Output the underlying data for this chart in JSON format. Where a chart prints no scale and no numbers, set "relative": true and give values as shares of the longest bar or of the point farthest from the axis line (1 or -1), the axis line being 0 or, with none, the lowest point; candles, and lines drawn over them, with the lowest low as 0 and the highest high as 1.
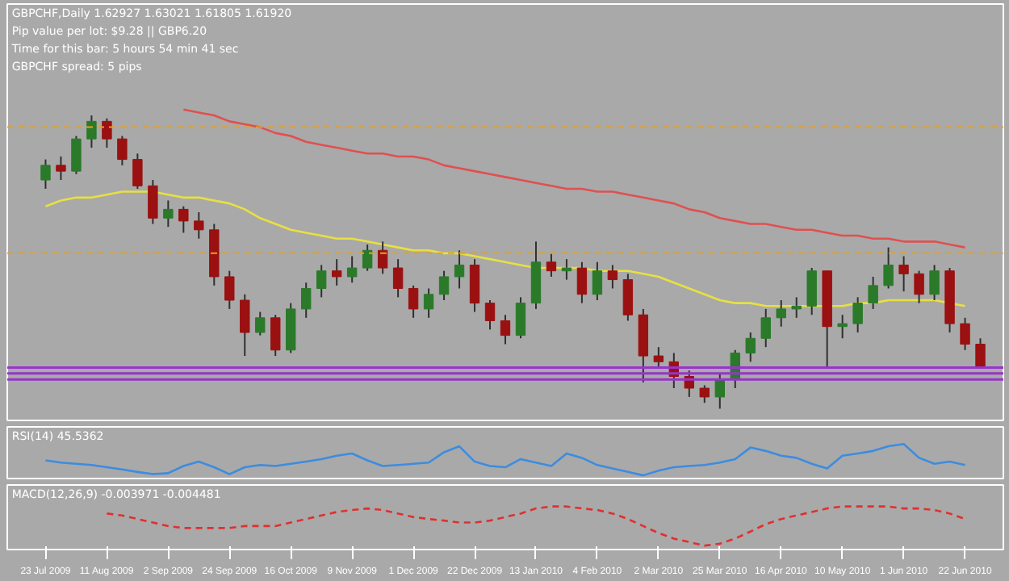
{
  "chart_data": [
    {
      "type": "candlestick",
      "relative": true,
      "title": "GBPCHF,Daily 1.62927 1.63021 1.61805 1.61920",
      "tick_labels": false,
      "grid": false,
      "annotations": [
        "Pip value per lot: $9.28 || GBP6.20",
        "Time for this bar: 5 hours 54 min 41 sec",
        "GBPCHF spread: 5 pips"
      ],
      "ohlc": [
        [
          0.78,
          0.85,
          0.75,
          0.83
        ],
        [
          0.83,
          0.86,
          0.78,
          0.81
        ],
        [
          0.81,
          0.93,
          0.8,
          0.92
        ],
        [
          0.92,
          1,
          0.89,
          0.98
        ],
        [
          0.98,
          0.99,
          0.89,
          0.92
        ],
        [
          0.92,
          0.93,
          0.83,
          0.85
        ],
        [
          0.85,
          0.87,
          0.75,
          0.76
        ],
        [
          0.76,
          0.78,
          0.63,
          0.65
        ],
        [
          0.65,
          0.71,
          0.62,
          0.68
        ],
        [
          0.68,
          0.69,
          0.6,
          0.64
        ],
        [
          0.64,
          0.67,
          0.58,
          0.61
        ],
        [
          0.61,
          0.63,
          0.42,
          0.45
        ],
        [
          0.45,
          0.47,
          0.34,
          0.37
        ],
        [
          0.37,
          0.39,
          0.18,
          0.26
        ],
        [
          0.26,
          0.33,
          0.25,
          0.31
        ],
        [
          0.31,
          0.32,
          0.18,
          0.2
        ],
        [
          0.2,
          0.36,
          0.19,
          0.34
        ],
        [
          0.34,
          0.43,
          0.31,
          0.41
        ],
        [
          0.41,
          0.49,
          0.38,
          0.47
        ],
        [
          0.47,
          0.51,
          0.42,
          0.45
        ],
        [
          0.45,
          0.52,
          0.43,
          0.48
        ],
        [
          0.48,
          0.56,
          0.47,
          0.54
        ],
        [
          0.54,
          0.57,
          0.46,
          0.48
        ],
        [
          0.48,
          0.51,
          0.38,
          0.41
        ],
        [
          0.41,
          0.42,
          0.31,
          0.34
        ],
        [
          0.34,
          0.41,
          0.31,
          0.39
        ],
        [
          0.39,
          0.47,
          0.37,
          0.45
        ],
        [
          0.45,
          0.54,
          0.41,
          0.49
        ],
        [
          0.49,
          0.51,
          0.33,
          0.36
        ],
        [
          0.36,
          0.37,
          0.27,
          0.3
        ],
        [
          0.3,
          0.32,
          0.22,
          0.25
        ],
        [
          0.25,
          0.38,
          0.24,
          0.36
        ],
        [
          0.36,
          0.57,
          0.34,
          0.5
        ],
        [
          0.5,
          0.53,
          0.45,
          0.47
        ],
        [
          0.47,
          0.51,
          0.44,
          0.48
        ],
        [
          0.48,
          0.5,
          0.36,
          0.39
        ],
        [
          0.39,
          0.5,
          0.37,
          0.47
        ],
        [
          0.47,
          0.49,
          0.41,
          0.44
        ],
        [
          0.44,
          0.46,
          0.3,
          0.32
        ],
        [
          0.32,
          0.34,
          0.09,
          0.18
        ],
        [
          0.18,
          0.21,
          0.14,
          0.16
        ],
        [
          0.16,
          0.19,
          0.07,
          0.11
        ],
        [
          0.11,
          0.13,
          0.04,
          0.07
        ],
        [
          0.07,
          0.08,
          0.02,
          0.04
        ],
        [
          0.04,
          0.12,
          0,
          0.1
        ],
        [
          0.1,
          0.2,
          0.07,
          0.19
        ],
        [
          0.19,
          0.26,
          0.16,
          0.24
        ],
        [
          0.24,
          0.34,
          0.21,
          0.31
        ],
        [
          0.31,
          0.37,
          0.28,
          0.34
        ],
        [
          0.34,
          0.38,
          0.31,
          0.35
        ],
        [
          0.35,
          0.48,
          0.32,
          0.47
        ],
        [
          0.47,
          0.47,
          0.14,
          0.28
        ],
        [
          0.28,
          0.32,
          0.24,
          0.29
        ],
        [
          0.29,
          0.38,
          0.26,
          0.36
        ],
        [
          0.36,
          0.45,
          0.34,
          0.42
        ],
        [
          0.42,
          0.55,
          0.41,
          0.49
        ],
        [
          0.49,
          0.52,
          0.4,
          0.46
        ],
        [
          0.46,
          0.47,
          0.36,
          0.39
        ],
        [
          0.39,
          0.49,
          0.37,
          0.47
        ],
        [
          0.47,
          0.48,
          0.26,
          0.29
        ],
        [
          0.29,
          0.31,
          0.2,
          0.22
        ],
        [
          0.22,
          0.24,
          0.14,
          0.14
        ]
      ],
      "colors": [
        "#2a7a2a",
        "#9b1010",
        "#2a7a2a",
        "#2a7a2a",
        "#9b1010",
        "#9b1010",
        "#9b1010",
        "#9b1010",
        "#2a7a2a",
        "#9b1010",
        "#9b1010",
        "#9b1010",
        "#9b1010",
        "#9b1010",
        "#2a7a2a",
        "#9b1010",
        "#2a7a2a",
        "#2a7a2a",
        "#2a7a2a",
        "#9b1010",
        "#2a7a2a",
        "#2a7a2a",
        "#9b1010",
        "#9b1010",
        "#9b1010",
        "#2a7a2a",
        "#2a7a2a",
        "#2a7a2a",
        "#9b1010",
        "#9b1010",
        "#9b1010",
        "#2a7a2a",
        "#2a7a2a",
        "#9b1010",
        "#2a7a2a",
        "#9b1010",
        "#2a7a2a",
        "#9b1010",
        "#9b1010",
        "#9b1010",
        "#9b1010",
        "#9b1010",
        "#9b1010",
        "#9b1010",
        "#2a7a2a",
        "#2a7a2a",
        "#2a7a2a",
        "#2a7a2a",
        "#2a7a2a",
        "#2a7a2a",
        "#2a7a2a",
        "#9b1010",
        "#2a7a2a",
        "#2a7a2a",
        "#2a7a2a",
        "#2a7a2a",
        "#9b1010",
        "#9b1010",
        "#2a7a2a",
        "#9b1010",
        "#9b1010",
        "#9b1010"
      ],
      "series": [
        {
          "type": "line",
          "color": "#e05050",
          "values": [
            null,
            null,
            null,
            null,
            null,
            null,
            null,
            null,
            null,
            1.02,
            1.01,
            1.0,
            0.98,
            0.97,
            0.96,
            0.94,
            0.93,
            0.91,
            0.9,
            0.89,
            0.88,
            0.87,
            0.87,
            0.86,
            0.86,
            0.85,
            0.83,
            0.82,
            0.81,
            0.8,
            0.79,
            0.78,
            0.77,
            0.76,
            0.75,
            0.75,
            0.74,
            0.74,
            0.73,
            0.72,
            0.71,
            0.7,
            0.68,
            0.67,
            0.65,
            0.64,
            0.63,
            0.63,
            0.62,
            0.61,
            0.61,
            0.6,
            0.59,
            0.59,
            0.58,
            0.58,
            0.57,
            0.57,
            0.57,
            0.56,
            0.55,
            null
          ]
        },
        {
          "type": "line",
          "color": "#e8e040",
          "values": [
            0.69,
            0.71,
            0.72,
            0.72,
            0.73,
            0.74,
            0.74,
            0.74,
            0.73,
            0.72,
            0.72,
            0.71,
            0.7,
            0.68,
            0.65,
            0.63,
            0.61,
            0.6,
            0.59,
            0.58,
            0.58,
            0.57,
            0.56,
            0.55,
            0.54,
            0.54,
            0.53,
            0.53,
            0.52,
            0.51,
            0.5,
            0.49,
            0.48,
            0.48,
            0.48,
            0.48,
            0.47,
            0.47,
            0.47,
            0.46,
            0.45,
            0.43,
            0.41,
            0.39,
            0.37,
            0.36,
            0.36,
            0.35,
            0.35,
            0.35,
            0.35,
            0.35,
            0.35,
            0.36,
            0.36,
            0.37,
            0.37,
            0.37,
            0.37,
            0.36,
            0.35,
            null
          ]
        }
      ],
      "ref_lines": [
        {
          "axis": "y",
          "value": 0.96,
          "color": "#e8a020",
          "line_style": "dashed"
        },
        {
          "axis": "y",
          "value": 0.53,
          "color": "#e8a020",
          "line_style": "dashed"
        },
        {
          "axis": "y",
          "value": 0.14,
          "color": "#9933cc",
          "line_style": "solid"
        },
        {
          "axis": "y",
          "value": 0.12,
          "color": "#9933cc",
          "line_style": "solid"
        },
        {
          "axis": "y",
          "value": 0.1,
          "color": "#9933cc",
          "line_style": "solid"
        }
      ]
    },
    {
      "type": "line",
      "relative": true,
      "title": "RSI(14) 45.5362",
      "tick_labels": false,
      "grid": false,
      "line_style": "solid",
      "series": [
        {
          "color": "#3c8ce0",
          "values": [
            0.48,
            0.41,
            0.37,
            0.33,
            0.26,
            0.19,
            0.11,
            0.04,
            0.07,
            0.3,
            0.44,
            0.26,
            0.04,
            0.26,
            0.33,
            0.3,
            0.37,
            0.44,
            0.52,
            0.63,
            0.7,
            0.48,
            0.3,
            0.33,
            0.37,
            0.41,
            0.74,
            0.93,
            0.44,
            0.3,
            0.26,
            0.52,
            0.41,
            0.3,
            0.7,
            0.56,
            0.33,
            0.22,
            0.11,
            0,
            0.15,
            0.26,
            0.3,
            0.33,
            0.41,
            0.52,
            0.89,
            0.78,
            0.63,
            0.56,
            0.37,
            0.22,
            0.63,
            0.7,
            0.78,
            0.93,
            1.0,
            0.56,
            0.37,
            0.44,
            0.33,
            null
          ]
        }
      ]
    },
    {
      "type": "line",
      "relative": true,
      "title": "MACD(12,26,9) -0.003971 -0.004481",
      "tick_labels": "x",
      "grid": false,
      "line_style": "dashed",
      "categories": [
        "23 Jul 2009",
        null,
        null,
        null,
        "11 Aug 2009",
        null,
        null,
        null,
        "2 Sep 2009",
        null,
        null,
        null,
        "24 Sep 2009",
        null,
        null,
        null,
        "16 Oct 2009",
        null,
        null,
        null,
        "9 Nov 2009",
        null,
        null,
        null,
        "1 Dec 2009",
        null,
        null,
        null,
        "22 Dec 2009",
        null,
        null,
        null,
        "13 Jan 2010",
        null,
        null,
        null,
        "4 Feb 2010",
        null,
        null,
        null,
        "2 Mar 2010",
        null,
        null,
        null,
        "25 Mar 2010",
        null,
        null,
        null,
        "16 Apr 2010",
        null,
        null,
        null,
        "10 May 2010",
        null,
        null,
        null,
        "1 Jun 2010",
        null,
        null,
        null,
        "22 Jun 2010",
        null
      ],
      "series": [
        {
          "color": "#e03030",
          "values": [
            null,
            null,
            null,
            null,
            0.82,
            0.77,
            0.68,
            0.59,
            0.5,
            0.45,
            0.45,
            0.45,
            0.45,
            0.5,
            0.5,
            0.5,
            0.59,
            0.68,
            0.77,
            0.86,
            0.91,
            0.95,
            0.91,
            0.82,
            0.73,
            0.68,
            0.64,
            0.59,
            0.59,
            0.64,
            0.73,
            0.82,
            0.95,
            1.0,
            1.0,
            0.95,
            0.91,
            0.82,
            0.68,
            0.5,
            0.32,
            0.18,
            0.09,
            0,
            0.05,
            0.18,
            0.36,
            0.55,
            0.68,
            0.77,
            0.86,
            0.95,
            1.0,
            1.0,
            1.0,
            1.0,
            0.95,
            0.95,
            0.91,
            0.82,
            0.68,
            null
          ]
        }
      ]
    }
  ]
}
